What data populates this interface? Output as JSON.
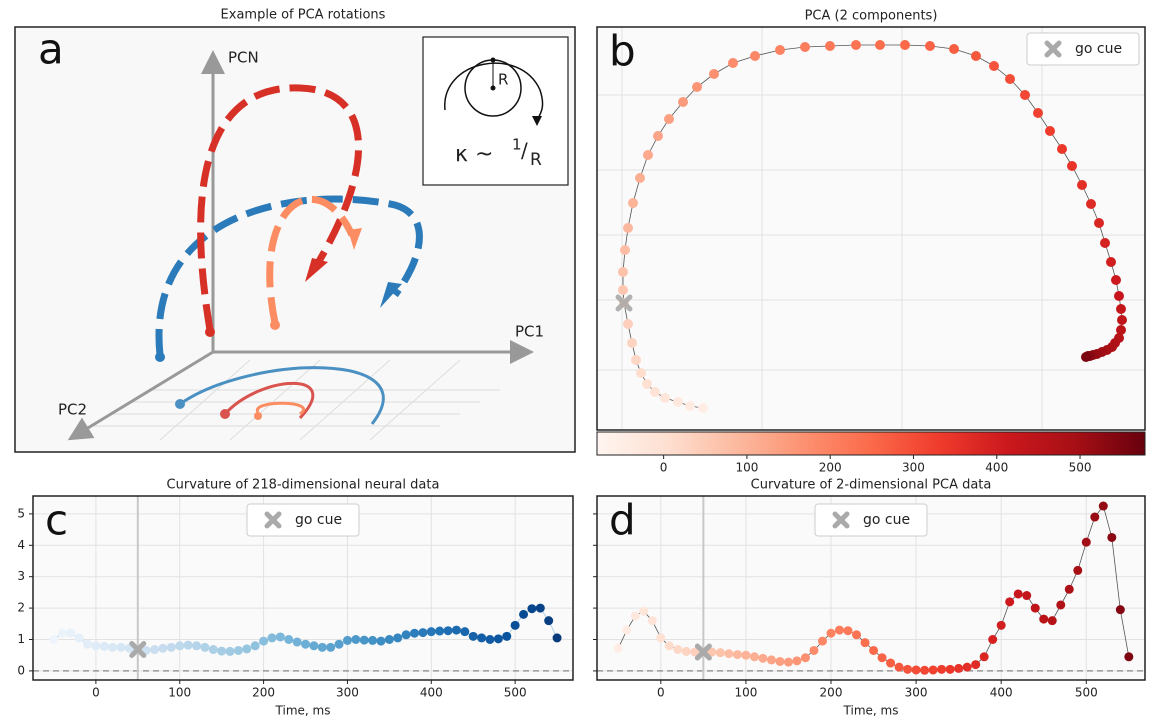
{
  "diagram": {
    "title": "Example of PCA rotations",
    "panel_label": "a",
    "axis_n": "PCN",
    "axis_1": "PC1",
    "axis_2": "PC2",
    "inset_r": "R",
    "formula": [
      "κ ~",
      "1",
      "/",
      "R"
    ]
  },
  "chart_data": [
    {
      "type": "scatter",
      "title": "PCA (2 components)",
      "panel_label": "b",
      "xlim": [
        0,
        548
      ],
      "ylim": [
        0,
        403
      ],
      "xgrid": [
        25,
        165,
        305,
        445
      ],
      "ygrid": [
        60,
        130,
        195,
        260,
        335
      ],
      "x": [
        106,
        93,
        81,
        68,
        58,
        50,
        44,
        39,
        35,
        31,
        27,
        26,
        26,
        28,
        31,
        36,
        43,
        51,
        61,
        72,
        86,
        100,
        117,
        136,
        158,
        183,
        208,
        233,
        259,
        283,
        308,
        333,
        357,
        379,
        397,
        413,
        428,
        441,
        453,
        465,
        475,
        485,
        494,
        502,
        508,
        514,
        519,
        522,
        524,
        525,
        524,
        522,
        518,
        515,
        510,
        505,
        500,
        496,
        493,
        491,
        489
      ],
      "y": [
        22,
        24,
        28,
        32,
        38,
        46,
        57,
        70,
        87,
        106,
        127,
        140,
        158,
        180,
        202,
        227,
        252,
        275,
        294,
        311,
        328,
        343,
        356,
        367,
        374,
        380,
        383,
        384,
        385,
        385,
        385,
        384,
        381,
        374,
        364,
        351,
        335,
        317,
        299,
        281,
        264,
        245,
        226,
        207,
        187,
        168,
        150,
        134,
        121,
        110,
        100,
        92,
        87,
        83,
        80,
        78,
        76,
        75,
        74,
        74,
        73
      ],
      "time": [
        -50,
        -40,
        -30,
        -20,
        -10,
        0,
        10,
        20,
        30,
        40,
        50,
        60,
        70,
        80,
        90,
        100,
        110,
        120,
        130,
        140,
        150,
        160,
        170,
        180,
        190,
        200,
        210,
        220,
        230,
        240,
        250,
        260,
        270,
        280,
        290,
        300,
        310,
        320,
        330,
        340,
        350,
        360,
        370,
        380,
        390,
        400,
        410,
        420,
        430,
        440,
        450,
        460,
        470,
        480,
        490,
        500,
        510,
        520,
        530,
        540,
        550
      ],
      "colormap": [
        "#fff5f0",
        "#fee0d2",
        "#fcbba1",
        "#fc9272",
        "#fb6a4a",
        "#ef3b2c",
        "#cb181d",
        "#a50f15",
        "#67000d"
      ],
      "line_color": "#555555",
      "go_cue": {
        "x": 27,
        "y": 127
      },
      "legend_label": "go cue",
      "marker_color": "#aaaaaa",
      "colorbar": {
        "lim": [
          -80,
          578
        ],
        "ticks": [
          0,
          100,
          200,
          300,
          400,
          500
        ]
      }
    },
    {
      "type": "line",
      "title": "Curvature of 218-dimensional neural data",
      "panel_label": "c",
      "xlabel": "Time, ms",
      "xlim": [
        -75,
        569
      ],
      "ylim": [
        -0.29,
        5.57
      ],
      "xticks": [
        0,
        100,
        200,
        300,
        400,
        500
      ],
      "yticks": [
        0,
        1,
        2,
        3,
        4,
        5
      ],
      "show_ytick_labels": true,
      "x": [
        -50,
        -40,
        -30,
        -20,
        -10,
        0,
        10,
        20,
        30,
        40,
        50,
        60,
        70,
        80,
        90,
        100,
        110,
        120,
        130,
        140,
        150,
        160,
        170,
        180,
        190,
        200,
        210,
        220,
        230,
        240,
        250,
        260,
        270,
        280,
        290,
        300,
        310,
        320,
        330,
        340,
        350,
        360,
        370,
        380,
        390,
        400,
        410,
        420,
        430,
        440,
        450,
        460,
        470,
        480,
        490,
        500,
        510,
        520,
        530,
        540,
        550
      ],
      "values": [
        1.0,
        1.2,
        1.2,
        1.05,
        0.85,
        0.8,
        0.78,
        0.75,
        0.75,
        0.72,
        0.68,
        0.65,
        0.68,
        0.72,
        0.75,
        0.8,
        0.82,
        0.8,
        0.75,
        0.68,
        0.63,
        0.62,
        0.65,
        0.7,
        0.8,
        0.95,
        1.05,
        1.08,
        1.0,
        0.92,
        0.85,
        0.8,
        0.75,
        0.75,
        0.85,
        0.97,
        1.0,
        0.98,
        0.97,
        0.95,
        1.0,
        1.05,
        1.15,
        1.2,
        1.22,
        1.25,
        1.27,
        1.28,
        1.3,
        1.25,
        1.1,
        1.05,
        1.0,
        1.02,
        1.1,
        1.45,
        1.8,
        1.98,
        2.0,
        1.6,
        1.05
      ],
      "colormap": [
        "#f7fbff",
        "#deebf7",
        "#c6dbef",
        "#9ecae1",
        "#6baed6",
        "#4292c6",
        "#2171b5",
        "#08519c",
        "#08306b"
      ],
      "color_range": [
        -80,
        578
      ],
      "line_color": "#9ecae1",
      "go_cue": {
        "x": 50,
        "y": 0.68
      },
      "legend_label": "go cue",
      "marker_color": "#aaaaaa"
    },
    {
      "type": "line",
      "title": "Curvature of 2-dimensional PCA data",
      "panel_label": "d",
      "xlabel": "Time, ms",
      "xlim": [
        -75,
        569
      ],
      "ylim": [
        -0.29,
        5.57
      ],
      "xticks": [
        0,
        100,
        200,
        300,
        400,
        500
      ],
      "yticks": [
        0,
        1,
        2,
        3,
        4,
        5
      ],
      "show_ytick_labels": false,
      "x": [
        -50,
        -40,
        -30,
        -20,
        -10,
        0,
        10,
        20,
        30,
        40,
        50,
        60,
        70,
        80,
        90,
        100,
        110,
        120,
        130,
        140,
        150,
        160,
        170,
        180,
        190,
        200,
        210,
        220,
        230,
        240,
        250,
        260,
        270,
        280,
        290,
        300,
        310,
        320,
        330,
        340,
        350,
        360,
        370,
        380,
        390,
        400,
        410,
        420,
        430,
        440,
        450,
        460,
        470,
        480,
        490,
        500,
        510,
        520,
        530,
        540,
        550
      ],
      "values": [
        0.72,
        1.3,
        1.75,
        1.9,
        1.6,
        1.05,
        0.8,
        0.68,
        0.62,
        0.6,
        0.6,
        0.6,
        0.58,
        0.55,
        0.52,
        0.5,
        0.45,
        0.4,
        0.35,
        0.3,
        0.28,
        0.32,
        0.42,
        0.65,
        0.95,
        1.2,
        1.3,
        1.28,
        1.15,
        0.9,
        0.65,
        0.42,
        0.25,
        0.12,
        0.05,
        0.03,
        0.02,
        0.03,
        0.05,
        0.05,
        0.08,
        0.12,
        0.2,
        0.45,
        1.0,
        1.45,
        2.2,
        2.45,
        2.4,
        2.0,
        1.65,
        1.6,
        2.1,
        2.6,
        3.2,
        4.1,
        4.9,
        5.25,
        4.25,
        1.95,
        0.45
      ],
      "colormap": [
        "#fff5f0",
        "#fee0d2",
        "#fcbba1",
        "#fc9272",
        "#fb6a4a",
        "#ef3b2c",
        "#cb181d",
        "#a50f15",
        "#67000d"
      ],
      "color_range": [
        -80,
        578
      ],
      "line_color": "#555555",
      "go_cue": {
        "x": 50,
        "y": 0.6
      },
      "legend_label": "go cue",
      "marker_color": "#aaaaaa"
    }
  ]
}
